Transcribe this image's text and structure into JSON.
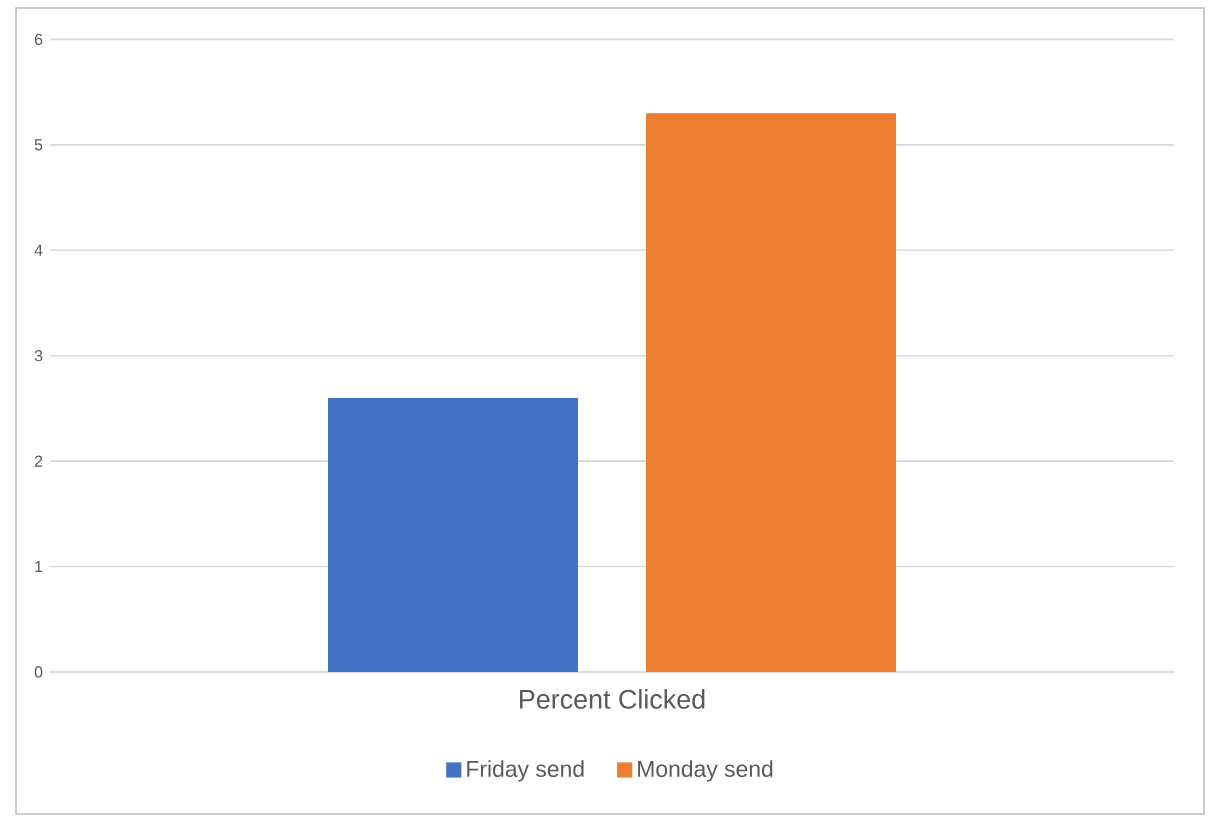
{
  "chart_data": {
    "type": "bar",
    "categories": [
      "Percent Clicked"
    ],
    "series": [
      {
        "name": "Friday send",
        "color": "#4472c4",
        "values": [
          2.6
        ]
      },
      {
        "name": "Monday send",
        "color": "#ed7d31",
        "values": [
          5.3
        ]
      }
    ],
    "ylim": [
      0,
      6
    ],
    "yticks": [
      0,
      1,
      2,
      3,
      4,
      5,
      6
    ],
    "grid": "y",
    "legend": "bottom"
  }
}
